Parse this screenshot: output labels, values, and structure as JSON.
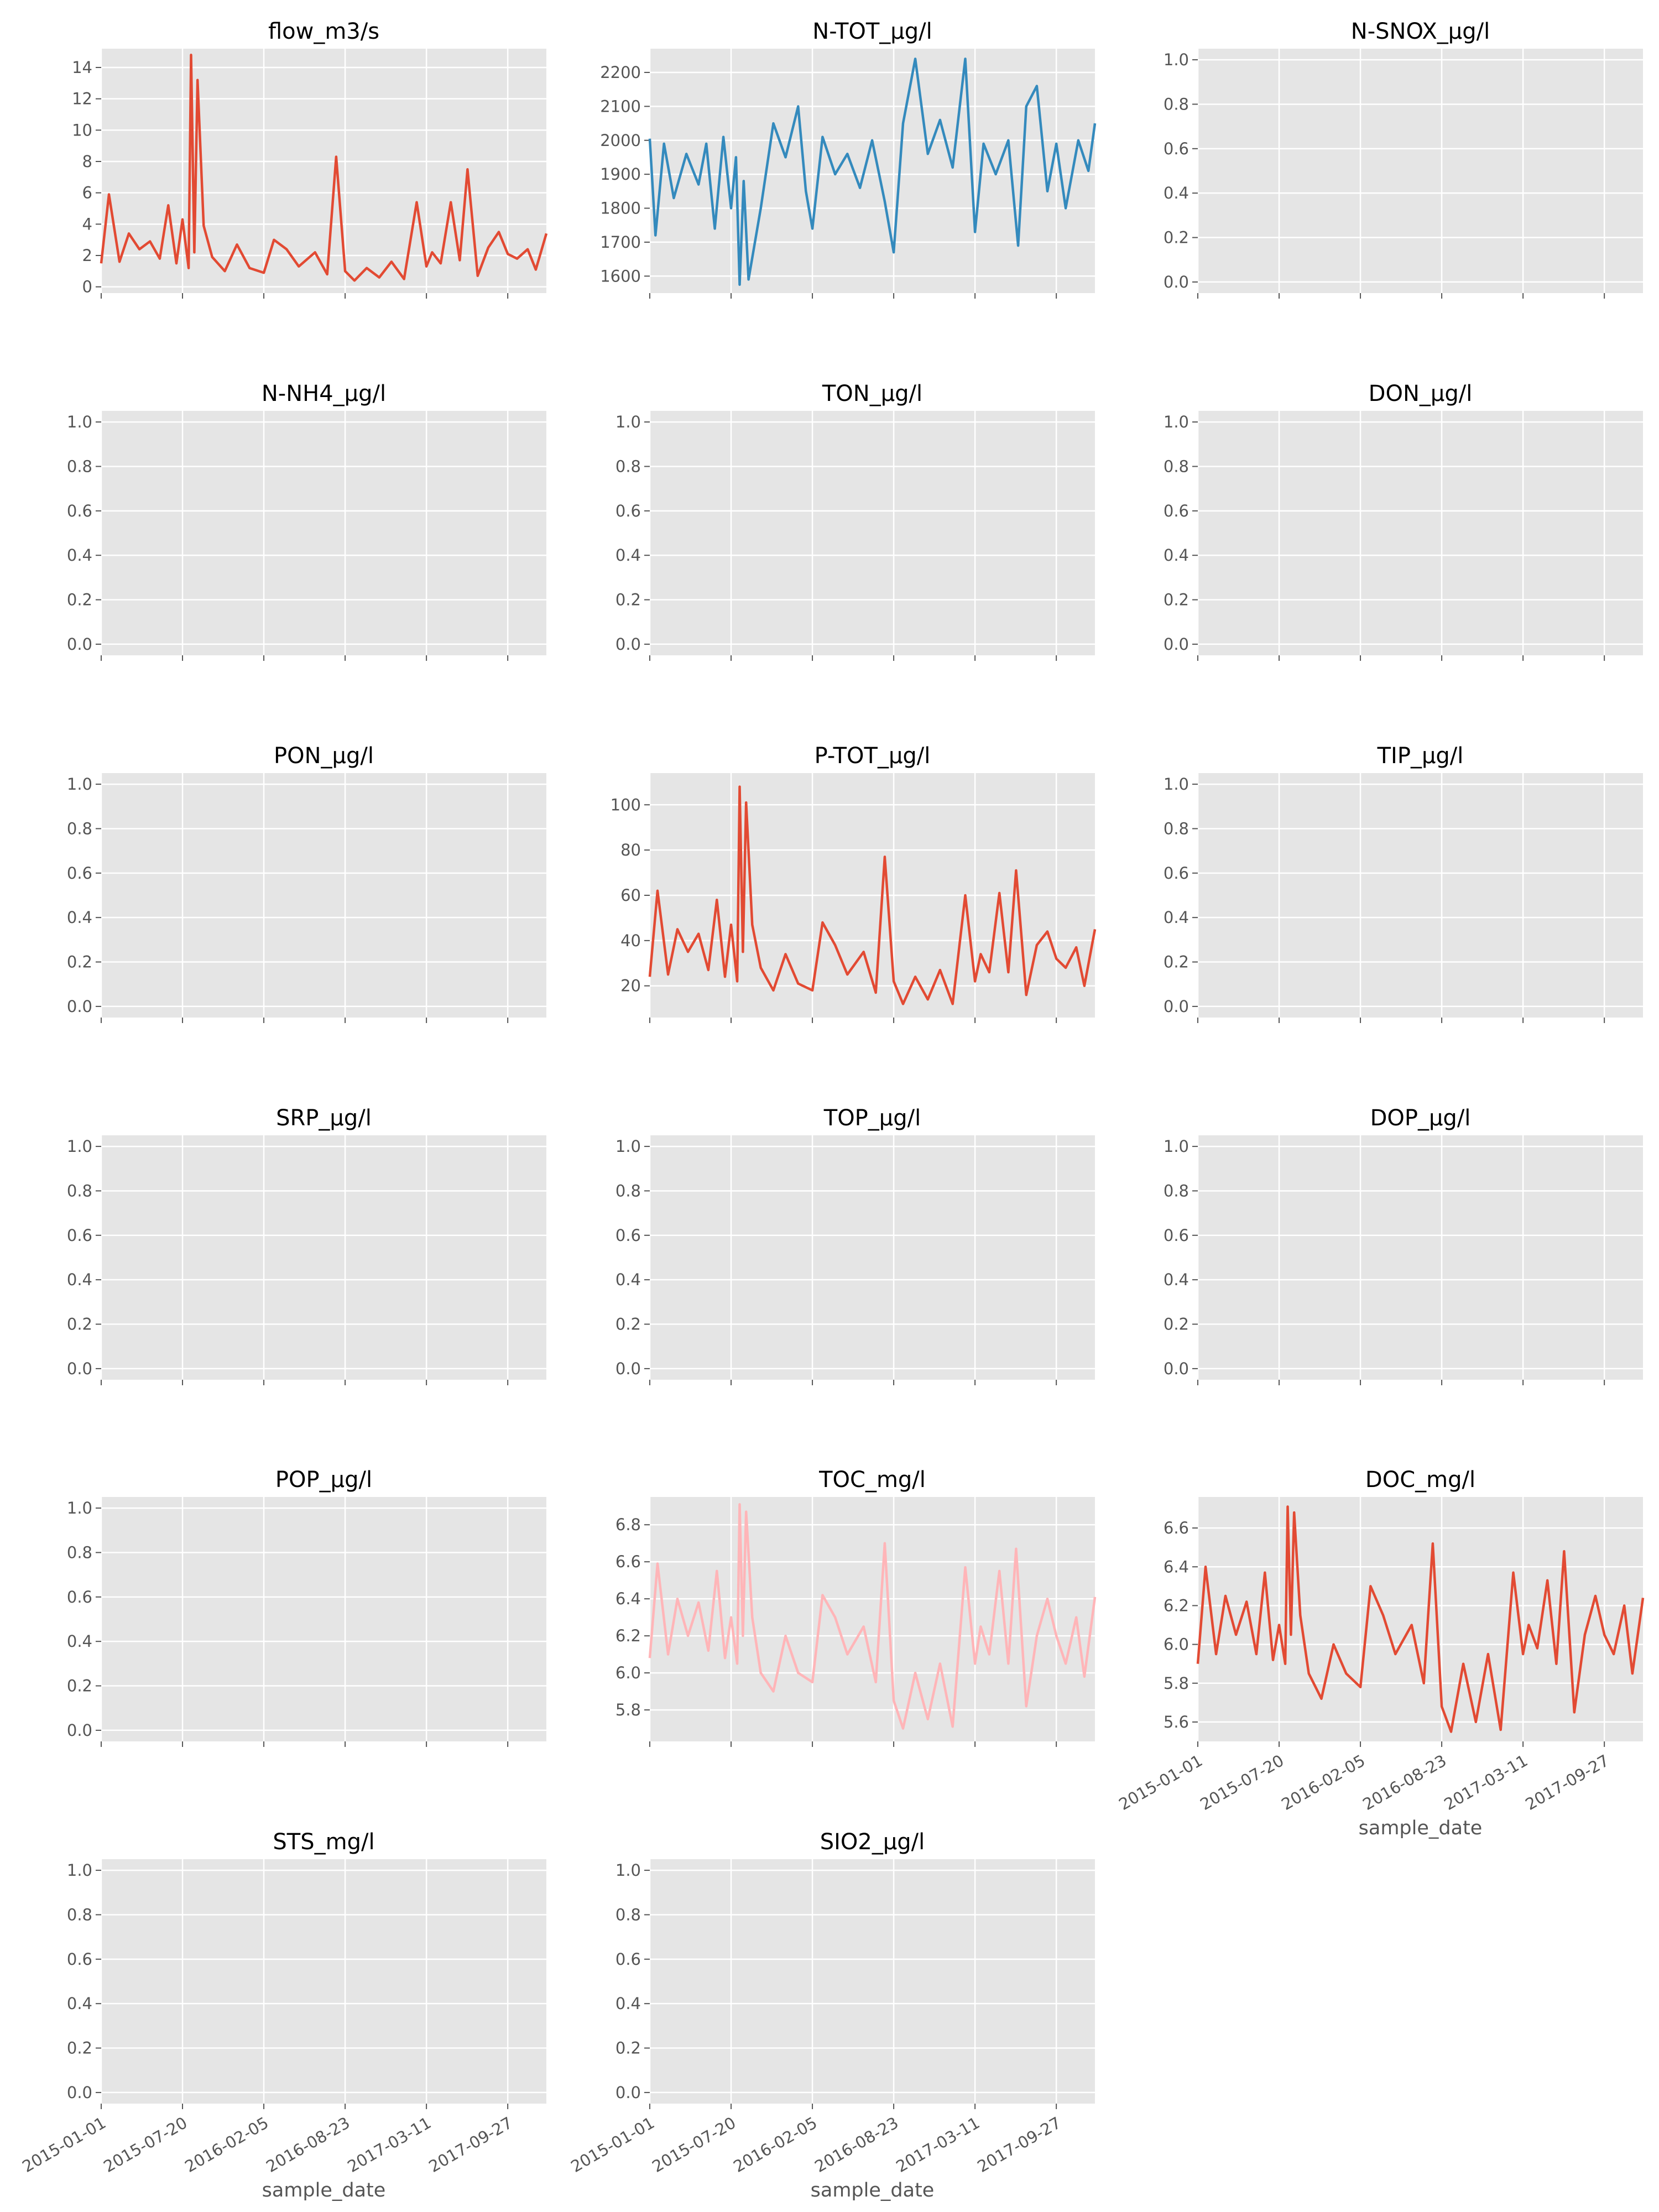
{
  "figure": {
    "x_tick_labels": [
      "2015-01-01",
      "2015-07-20",
      "2016-02-05",
      "2016-08-23",
      "2017-03-11",
      "2017-09-27"
    ],
    "xlabel": "sample_date"
  },
  "chart_data": [
    {
      "type": "line",
      "title": "flow_m3/s",
      "color": "#E24A33",
      "ylim": [
        -0.4,
        15.2
      ],
      "yticks": [
        0,
        2,
        4,
        6,
        8,
        10,
        12,
        14
      ],
      "x": [
        "2015-01-01",
        "2015-01-20",
        "2015-02-15",
        "2015-03-10",
        "2015-04-05",
        "2015-05-01",
        "2015-05-25",
        "2015-06-15",
        "2015-07-05",
        "2015-07-20",
        "2015-08-04",
        "2015-08-10",
        "2015-08-18",
        "2015-08-26",
        "2015-09-10",
        "2015-10-01",
        "2015-11-01",
        "2015-12-01",
        "2016-01-01",
        "2016-02-05",
        "2016-03-01",
        "2016-04-01",
        "2016-05-01",
        "2016-06-10",
        "2016-07-10",
        "2016-08-01",
        "2016-08-23",
        "2016-09-15",
        "2016-10-15",
        "2016-11-15",
        "2016-12-15",
        "2017-01-15",
        "2017-02-15",
        "2017-03-11",
        "2017-03-25",
        "2017-04-15",
        "2017-05-10",
        "2017-06-01",
        "2017-06-20",
        "2017-07-15",
        "2017-08-10",
        "2017-09-05",
        "2017-09-27",
        "2017-10-20",
        "2017-11-15",
        "2017-12-05",
        "2017-12-31"
      ],
      "values": [
        1.5,
        5.9,
        1.6,
        3.4,
        2.4,
        2.9,
        1.8,
        5.2,
        1.5,
        4.3,
        1.2,
        14.8,
        2.2,
        13.2,
        3.9,
        1.9,
        1.0,
        2.7,
        1.2,
        0.9,
        3.0,
        2.4,
        1.3,
        2.2,
        0.8,
        8.3,
        1.0,
        0.4,
        1.2,
        0.6,
        1.6,
        0.5,
        5.4,
        1.3,
        2.2,
        1.5,
        5.4,
        1.7,
        7.5,
        0.7,
        2.5,
        3.5,
        2.1,
        1.8,
        2.4,
        1.1,
        3.4
      ]
    },
    {
      "type": "line",
      "title": "N-TOT_µg/l",
      "color": "#348ABD",
      "ylim": [
        1550,
        2270
      ],
      "yticks": [
        1600,
        1700,
        1800,
        1900,
        2000,
        2100,
        2200
      ],
      "x": [
        "2015-01-01",
        "2015-01-15",
        "2015-02-05",
        "2015-03-01",
        "2015-04-01",
        "2015-05-01",
        "2015-05-20",
        "2015-06-10",
        "2015-07-01",
        "2015-07-20",
        "2015-08-01",
        "2015-08-10",
        "2015-08-20",
        "2015-09-01",
        "2015-10-01",
        "2015-11-01",
        "2015-12-01",
        "2016-01-01",
        "2016-01-20",
        "2016-02-05",
        "2016-03-01",
        "2016-04-01",
        "2016-05-01",
        "2016-06-01",
        "2016-07-01",
        "2016-08-01",
        "2016-08-23",
        "2016-09-15",
        "2016-10-15",
        "2016-11-15",
        "2016-12-15",
        "2017-01-15",
        "2017-02-15",
        "2017-03-11",
        "2017-04-01",
        "2017-05-01",
        "2017-06-01",
        "2017-06-25",
        "2017-07-15",
        "2017-08-10",
        "2017-09-05",
        "2017-09-27",
        "2017-10-20",
        "2017-11-20",
        "2017-12-15",
        "2017-12-31"
      ],
      "values": [
        2005,
        1720,
        1990,
        1830,
        1960,
        1870,
        1990,
        1740,
        2010,
        1800,
        1950,
        1575,
        1880,
        1590,
        1800,
        2050,
        1950,
        2100,
        1850,
        1740,
        2010,
        1900,
        1960,
        1860,
        2000,
        1820,
        1670,
        2050,
        2240,
        1960,
        2060,
        1920,
        2240,
        1730,
        1990,
        1900,
        2000,
        1690,
        2100,
        2160,
        1850,
        1990,
        1800,
        2000,
        1910,
        2050
      ]
    },
    {
      "type": "line",
      "title": "N-SNOX_µg/l",
      "color": "#E24A33",
      "ylim": [
        -0.05,
        1.05
      ],
      "yticks": [
        0.0,
        0.2,
        0.4,
        0.6,
        0.8,
        1.0
      ],
      "x": [],
      "values": []
    },
    {
      "type": "line",
      "title": "N-NH4_µg/l",
      "color": "#E24A33",
      "ylim": [
        -0.05,
        1.05
      ],
      "yticks": [
        0.0,
        0.2,
        0.4,
        0.6,
        0.8,
        1.0
      ],
      "x": [],
      "values": []
    },
    {
      "type": "line",
      "title": "TON_µg/l",
      "color": "#E24A33",
      "ylim": [
        -0.05,
        1.05
      ],
      "yticks": [
        0.0,
        0.2,
        0.4,
        0.6,
        0.8,
        1.0
      ],
      "x": [],
      "values": []
    },
    {
      "type": "line",
      "title": "DON_µg/l",
      "color": "#E24A33",
      "ylim": [
        -0.05,
        1.05
      ],
      "yticks": [
        0.0,
        0.2,
        0.4,
        0.6,
        0.8,
        1.0
      ],
      "x": [],
      "values": []
    },
    {
      "type": "line",
      "title": "PON_µg/l",
      "color": "#E24A33",
      "ylim": [
        -0.05,
        1.05
      ],
      "yticks": [
        0.0,
        0.2,
        0.4,
        0.6,
        0.8,
        1.0
      ],
      "x": [],
      "values": []
    },
    {
      "type": "line",
      "title": "P-TOT_µg/l",
      "color": "#E24A33",
      "ylim": [
        6,
        114
      ],
      "yticks": [
        20,
        40,
        60,
        80,
        100
      ],
      "x": [
        "2015-01-01",
        "2015-01-20",
        "2015-02-15",
        "2015-03-10",
        "2015-04-05",
        "2015-05-01",
        "2015-05-25",
        "2015-06-15",
        "2015-07-05",
        "2015-07-20",
        "2015-08-04",
        "2015-08-10",
        "2015-08-18",
        "2015-08-26",
        "2015-09-10",
        "2015-10-01",
        "2015-11-01",
        "2015-12-01",
        "2016-01-01",
        "2016-02-05",
        "2016-03-01",
        "2016-04-01",
        "2016-05-01",
        "2016-06-10",
        "2016-07-10",
        "2016-08-01",
        "2016-08-23",
        "2016-09-15",
        "2016-10-15",
        "2016-11-15",
        "2016-12-15",
        "2017-01-15",
        "2017-02-15",
        "2017-03-11",
        "2017-03-25",
        "2017-04-15",
        "2017-05-10",
        "2017-06-01",
        "2017-06-20",
        "2017-07-15",
        "2017-08-10",
        "2017-09-05",
        "2017-09-27",
        "2017-10-20",
        "2017-11-15",
        "2017-12-05",
        "2017-12-31"
      ],
      "values": [
        24,
        62,
        25,
        45,
        35,
        43,
        27,
        58,
        24,
        47,
        22,
        108,
        35,
        101,
        47,
        28,
        18,
        34,
        21,
        18,
        48,
        38,
        25,
        35,
        17,
        77,
        22,
        12,
        24,
        14,
        27,
        12,
        60,
        22,
        34,
        26,
        61,
        26,
        71,
        16,
        38,
        44,
        32,
        28,
        37,
        20,
        45
      ]
    },
    {
      "type": "line",
      "title": "TIP_µg/l",
      "color": "#E24A33",
      "ylim": [
        -0.05,
        1.05
      ],
      "yticks": [
        0.0,
        0.2,
        0.4,
        0.6,
        0.8,
        1.0
      ],
      "x": [],
      "values": []
    },
    {
      "type": "line",
      "title": "SRP_µg/l",
      "color": "#E24A33",
      "ylim": [
        -0.05,
        1.05
      ],
      "yticks": [
        0.0,
        0.2,
        0.4,
        0.6,
        0.8,
        1.0
      ],
      "x": [],
      "values": []
    },
    {
      "type": "line",
      "title": "TOP_µg/l",
      "color": "#E24A33",
      "ylim": [
        -0.05,
        1.05
      ],
      "yticks": [
        0.0,
        0.2,
        0.4,
        0.6,
        0.8,
        1.0
      ],
      "x": [],
      "values": []
    },
    {
      "type": "line",
      "title": "DOP_µg/l",
      "color": "#E24A33",
      "ylim": [
        -0.05,
        1.05
      ],
      "yticks": [
        0.0,
        0.2,
        0.4,
        0.6,
        0.8,
        1.0
      ],
      "x": [],
      "values": []
    },
    {
      "type": "line",
      "title": "POP_µg/l",
      "color": "#E24A33",
      "ylim": [
        -0.05,
        1.05
      ],
      "yticks": [
        0.0,
        0.2,
        0.4,
        0.6,
        0.8,
        1.0
      ],
      "x": [],
      "values": []
    },
    {
      "type": "line",
      "title": "TOC_mg/l",
      "color": "#FFB5B8",
      "ylim": [
        5.63,
        6.95
      ],
      "yticks": [
        5.8,
        6.0,
        6.2,
        6.4,
        6.6,
        6.8
      ],
      "x": [
        "2015-01-01",
        "2015-01-20",
        "2015-02-15",
        "2015-03-10",
        "2015-04-05",
        "2015-05-01",
        "2015-05-25",
        "2015-06-15",
        "2015-07-05",
        "2015-07-20",
        "2015-08-04",
        "2015-08-10",
        "2015-08-18",
        "2015-08-26",
        "2015-09-10",
        "2015-10-01",
        "2015-11-01",
        "2015-12-01",
        "2016-01-01",
        "2016-02-05",
        "2016-03-01",
        "2016-04-01",
        "2016-05-01",
        "2016-06-10",
        "2016-07-10",
        "2016-08-01",
        "2016-08-23",
        "2016-09-15",
        "2016-10-15",
        "2016-11-15",
        "2016-12-15",
        "2017-01-15",
        "2017-02-15",
        "2017-03-11",
        "2017-03-25",
        "2017-04-15",
        "2017-05-10",
        "2017-06-01",
        "2017-06-20",
        "2017-07-15",
        "2017-08-10",
        "2017-09-05",
        "2017-09-27",
        "2017-10-20",
        "2017-11-15",
        "2017-12-05",
        "2017-12-31"
      ],
      "values": [
        6.08,
        6.59,
        6.1,
        6.4,
        6.2,
        6.38,
        6.12,
        6.55,
        6.08,
        6.3,
        6.05,
        6.91,
        6.2,
        6.87,
        6.3,
        6.0,
        5.9,
        6.2,
        6.0,
        5.95,
        6.42,
        6.3,
        6.1,
        6.25,
        5.95,
        6.7,
        5.85,
        5.7,
        6.0,
        5.75,
        6.05,
        5.71,
        6.57,
        6.05,
        6.25,
        6.1,
        6.55,
        6.05,
        6.67,
        5.82,
        6.2,
        6.4,
        6.2,
        6.05,
        6.3,
        5.98,
        6.41
      ]
    },
    {
      "type": "line",
      "title": "DOC_mg/l",
      "color": "#E24A33",
      "ylim": [
        5.5,
        6.76
      ],
      "yticks": [
        5.6,
        5.8,
        6.0,
        6.2,
        6.4,
        6.6
      ],
      "x": [
        "2015-01-01",
        "2015-01-20",
        "2015-02-15",
        "2015-03-10",
        "2015-04-05",
        "2015-05-01",
        "2015-05-25",
        "2015-06-15",
        "2015-07-05",
        "2015-07-20",
        "2015-08-04",
        "2015-08-10",
        "2015-08-18",
        "2015-08-26",
        "2015-09-10",
        "2015-10-01",
        "2015-11-01",
        "2015-12-01",
        "2016-01-01",
        "2016-02-05",
        "2016-03-01",
        "2016-04-01",
        "2016-05-01",
        "2016-06-10",
        "2016-07-10",
        "2016-08-01",
        "2016-08-23",
        "2016-09-15",
        "2016-10-15",
        "2016-11-15",
        "2016-12-15",
        "2017-01-15",
        "2017-02-15",
        "2017-03-11",
        "2017-03-25",
        "2017-04-15",
        "2017-05-10",
        "2017-06-01",
        "2017-06-20",
        "2017-07-15",
        "2017-08-10",
        "2017-09-05",
        "2017-09-27",
        "2017-10-20",
        "2017-11-15",
        "2017-12-05",
        "2017-12-31"
      ],
      "values": [
        5.9,
        6.4,
        5.95,
        6.25,
        6.05,
        6.22,
        5.95,
        6.37,
        5.92,
        6.1,
        5.9,
        6.71,
        6.05,
        6.68,
        6.15,
        5.85,
        5.72,
        6.0,
        5.85,
        5.78,
        6.3,
        6.15,
        5.95,
        6.1,
        5.8,
        6.52,
        5.68,
        5.55,
        5.9,
        5.6,
        5.95,
        5.56,
        6.37,
        5.95,
        6.1,
        5.98,
        6.33,
        5.9,
        6.48,
        5.65,
        6.05,
        6.25,
        6.05,
        5.95,
        6.2,
        5.85,
        6.24
      ]
    },
    {
      "type": "line",
      "title": "STS_mg/l",
      "color": "#E24A33",
      "ylim": [
        -0.05,
        1.05
      ],
      "yticks": [
        0.0,
        0.2,
        0.4,
        0.6,
        0.8,
        1.0
      ],
      "x": [],
      "values": []
    },
    {
      "type": "line",
      "title": "SIO2_µg/l",
      "color": "#E24A33",
      "ylim": [
        -0.05,
        1.05
      ],
      "yticks": [
        0.0,
        0.2,
        0.4,
        0.6,
        0.8,
        1.0
      ],
      "x": [],
      "values": []
    }
  ]
}
